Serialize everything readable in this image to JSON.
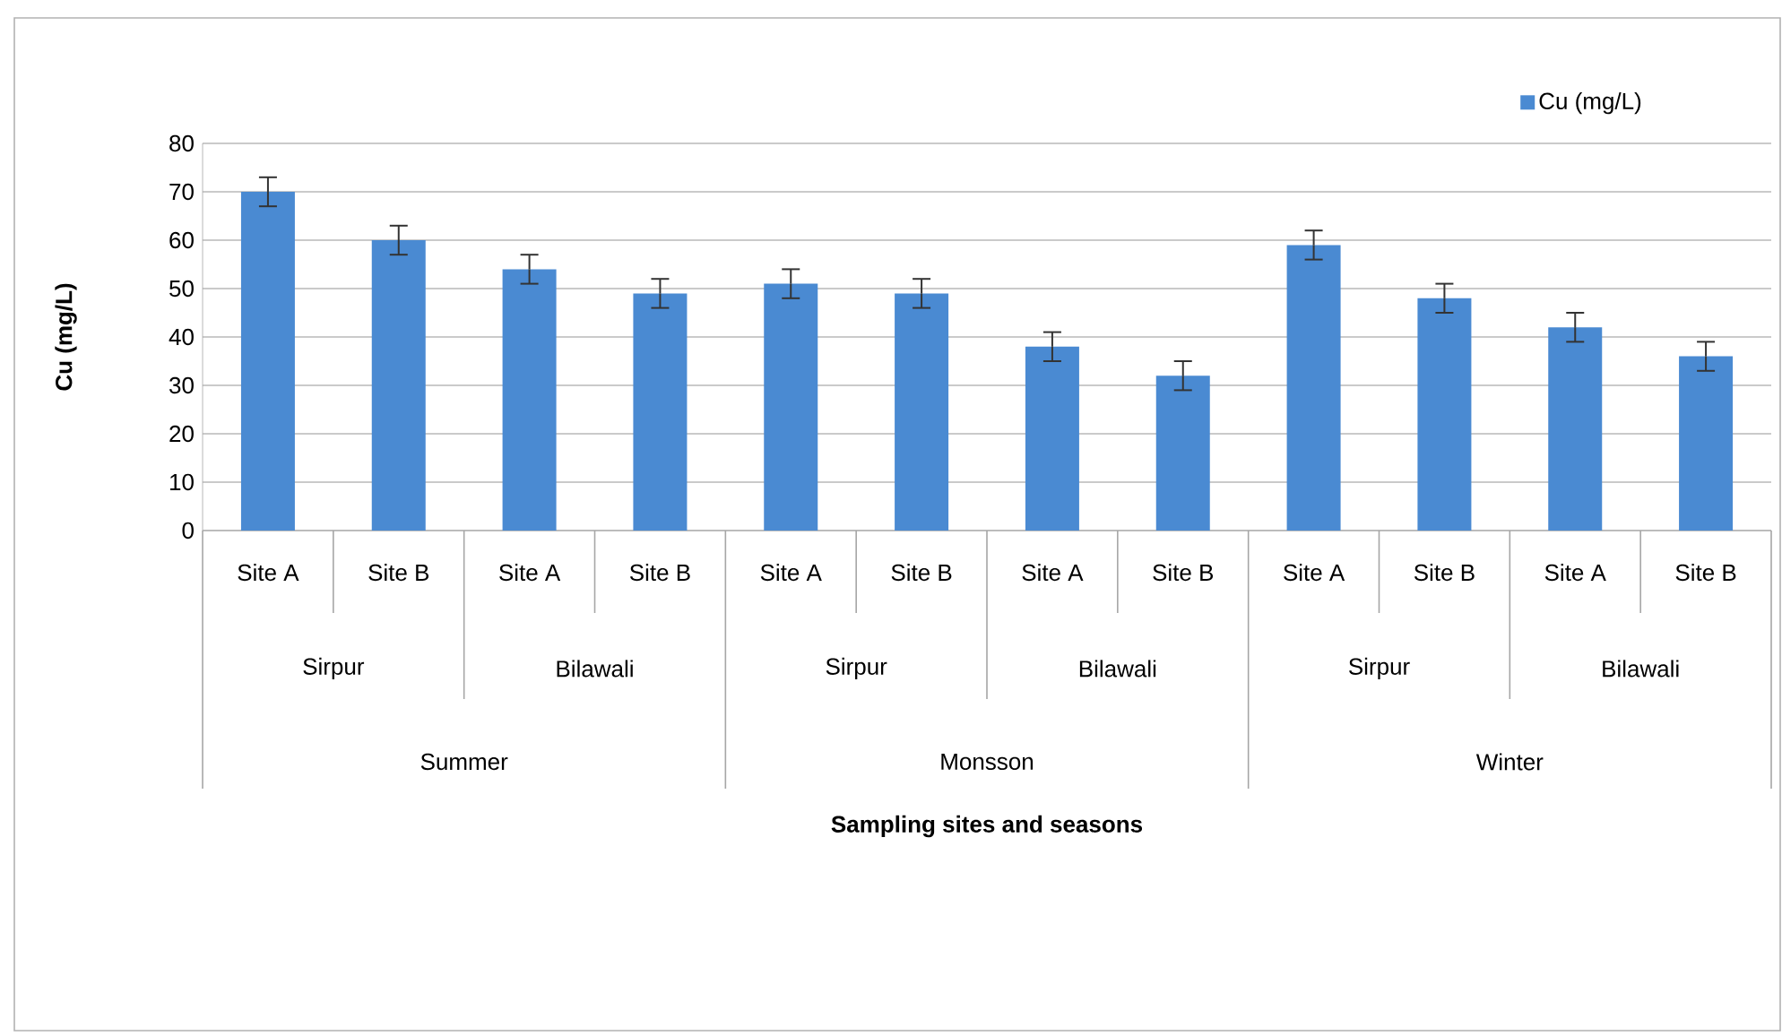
{
  "chart_data": {
    "type": "bar",
    "ylabel": "Cu  (mg/L)",
    "categories": [
      "Site A",
      "Site B",
      "Site A",
      "Site B",
      "Site A",
      "Site B",
      "Site A",
      "Site B",
      "Site A",
      "Site B",
      "Site A",
      "Site B"
    ],
    "series": [
      {
        "name": "Cu (mg/L)",
        "color": "#4a8ad2",
        "values": [
          70,
          60,
          54,
          49,
          51,
          49,
          38,
          32,
          59,
          48,
          42,
          36
        ],
        "errors": [
          3,
          3,
          3,
          3,
          3,
          3,
          3,
          3,
          3,
          3,
          3,
          3
        ]
      }
    ],
    "ylim": [
      0,
      80
    ],
    "yticks": [
      0,
      10,
      20,
      30,
      40,
      50,
      60,
      70,
      80
    ],
    "annotations": [
      "Sirpur",
      "Bilawali",
      "Sirpur",
      "Bilawali",
      "Sirpur",
      "Bilawali",
      "Summer",
      "Monsson",
      "Winter",
      "Sampling sites and seasons"
    ],
    "grid": "y",
    "legend": "top right"
  }
}
